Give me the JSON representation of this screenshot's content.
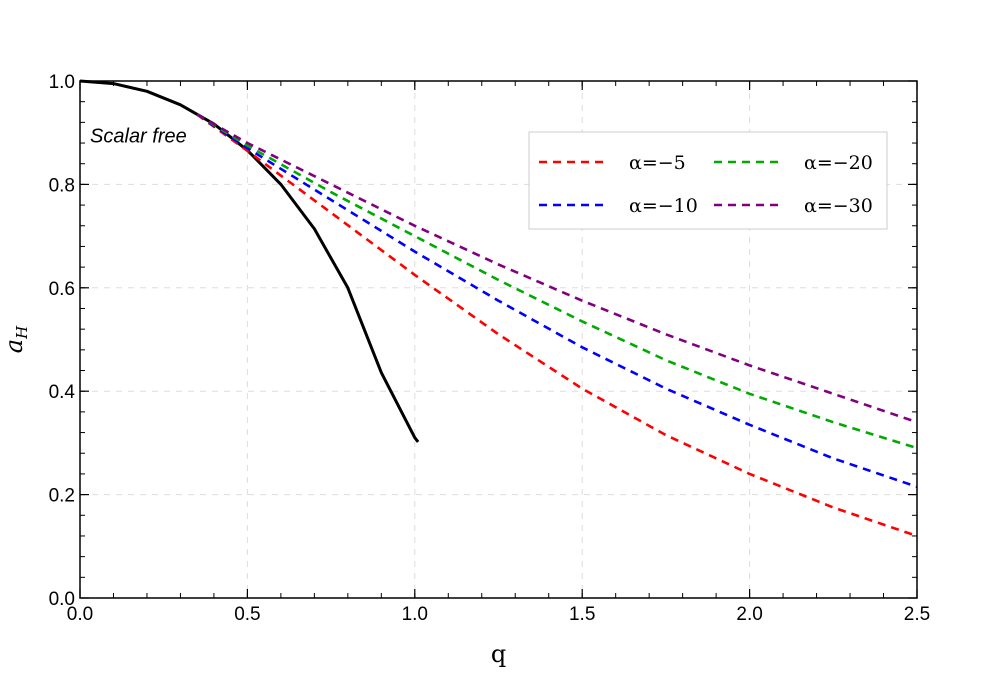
{
  "chart_data": {
    "type": "line",
    "title": "",
    "xlabel": "q",
    "ylabel": "a",
    "ylabel_subscript": "H",
    "xlim": [
      0,
      2.5
    ],
    "ylim": [
      0,
      1.0
    ],
    "xticks": [
      0.0,
      0.5,
      1.0,
      1.5,
      2.0,
      2.5
    ],
    "xtick_labels": [
      "0.0",
      "0.5",
      "1.0",
      "1.5",
      "2.0",
      "2.5"
    ],
    "yticks": [
      0.0,
      0.2,
      0.4,
      0.6,
      0.8,
      1.0
    ],
    "ytick_labels": [
      "0.0",
      "0.2",
      "0.4",
      "0.6",
      "0.8",
      "1.0"
    ],
    "grid": true,
    "legend_position": "top-right",
    "annotation": {
      "text": "Scalar free",
      "x": 0.03,
      "y": 0.895
    },
    "series": [
      {
        "name": "Scalar free",
        "in_legend": false,
        "color": "#000000",
        "dash": "solid",
        "x": [
          0.0,
          0.1,
          0.2,
          0.3,
          0.4,
          0.5,
          0.6,
          0.7,
          0.8,
          0.9,
          1.0,
          1.01
        ],
        "y": [
          1.0,
          0.995,
          0.98,
          0.954,
          0.917,
          0.866,
          0.8,
          0.714,
          0.6,
          0.436,
          0.31,
          0.302
        ]
      },
      {
        "name": "α=−5",
        "in_legend": true,
        "color": "#ff0000",
        "dash": "dashed",
        "x": [
          0.35,
          0.5,
          0.75,
          1.0,
          1.25,
          1.5,
          1.75,
          2.0,
          2.25,
          2.5
        ],
        "y": [
          0.935,
          0.865,
          0.745,
          0.625,
          0.51,
          0.405,
          0.315,
          0.24,
          0.175,
          0.12
        ]
      },
      {
        "name": "α=−10",
        "in_legend": true,
        "color": "#0000ff",
        "dash": "dashed",
        "x": [
          0.35,
          0.5,
          0.75,
          1.0,
          1.25,
          1.5,
          1.75,
          2.0,
          2.25,
          2.5
        ],
        "y": [
          0.935,
          0.87,
          0.77,
          0.67,
          0.575,
          0.485,
          0.405,
          0.335,
          0.27,
          0.215
        ]
      },
      {
        "name": "α=−20",
        "in_legend": true,
        "color": "#00aa00",
        "dash": "dashed",
        "x": [
          0.35,
          0.5,
          0.75,
          1.0,
          1.25,
          1.5,
          1.75,
          2.0,
          2.25,
          2.5
        ],
        "y": [
          0.935,
          0.875,
          0.785,
          0.7,
          0.615,
          0.535,
          0.46,
          0.395,
          0.34,
          0.29
        ]
      },
      {
        "name": "α=−30",
        "in_legend": true,
        "color": "#800080",
        "dash": "dashed",
        "x": [
          0.35,
          0.5,
          0.75,
          1.0,
          1.25,
          1.5,
          1.75,
          2.0,
          2.25,
          2.5
        ],
        "y": [
          0.935,
          0.88,
          0.8,
          0.72,
          0.645,
          0.575,
          0.51,
          0.45,
          0.395,
          0.34
        ]
      }
    ]
  }
}
